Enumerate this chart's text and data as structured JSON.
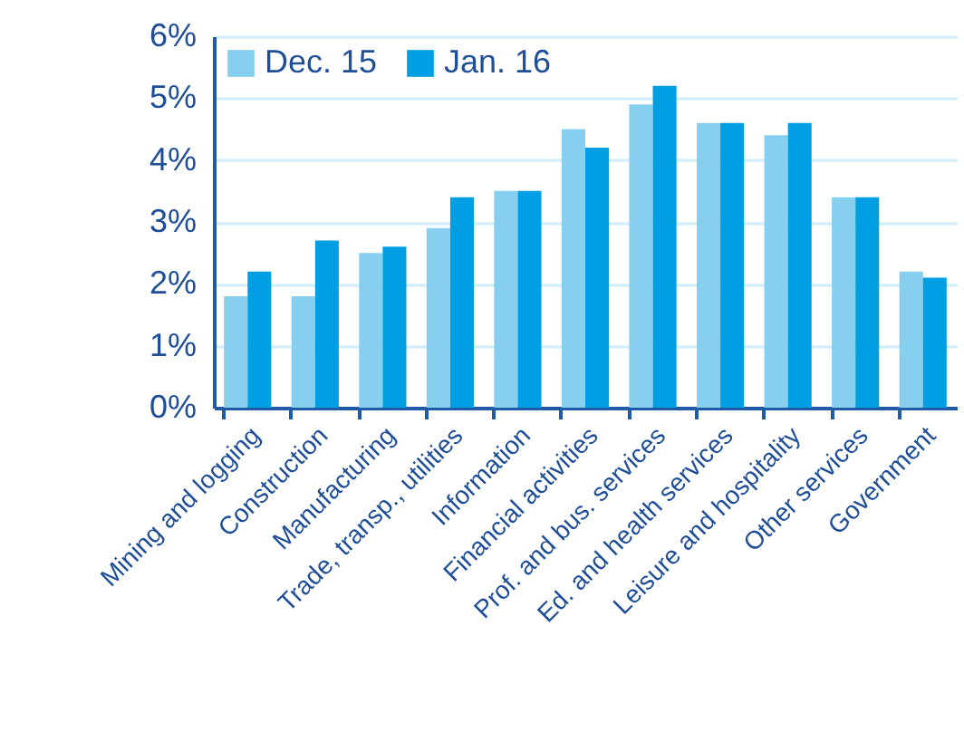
{
  "chart_data": {
    "type": "bar",
    "categories": [
      "Mining and logging",
      "Construction",
      "Manufacturing",
      "Trade, transp., utilities",
      "Information",
      "Financial activities",
      "Prof. and bus. services",
      "Ed. and health services",
      "Leisure and hospitality",
      "Other services",
      "Government"
    ],
    "series": [
      {
        "name": "Dec. 15",
        "color": "#87cfef",
        "values": [
          1.8,
          1.8,
          2.5,
          2.9,
          3.5,
          4.5,
          4.9,
          4.6,
          4.4,
          3.4,
          2.2
        ]
      },
      {
        "name": "Jan. 16",
        "color": "#009fe3",
        "values": [
          2.2,
          2.7,
          2.6,
          3.4,
          3.5,
          4.2,
          5.2,
          4.6,
          4.6,
          3.4,
          2.1
        ]
      }
    ],
    "ylim": [
      0,
      6
    ],
    "yticks": [
      {
        "value": 0,
        "label": "0%"
      },
      {
        "value": 1,
        "label": "1%"
      },
      {
        "value": 2,
        "label": "2%"
      },
      {
        "value": 3,
        "label": "3%"
      },
      {
        "value": 4,
        "label": "4%"
      },
      {
        "value": 5,
        "label": "5%"
      },
      {
        "value": 6,
        "label": "6%"
      }
    ],
    "grid": "y",
    "legend": "top left"
  }
}
